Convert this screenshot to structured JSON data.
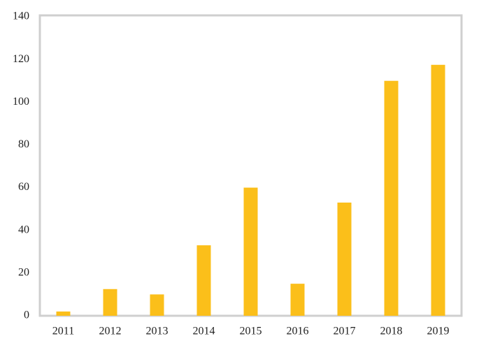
{
  "chart_data": {
    "type": "bar",
    "categories": [
      "2011",
      "2012",
      "2013",
      "2014",
      "2015",
      "2016",
      "2017",
      "2018",
      "2019"
    ],
    "values": [
      2,
      12.5,
      10,
      33,
      60,
      15,
      53,
      110,
      117.5
    ],
    "color": "#fbbf1a",
    "ylim": [
      0,
      140
    ],
    "yticks": [
      0,
      20,
      40,
      60,
      80,
      100,
      120,
      140
    ],
    "grid": false
  }
}
